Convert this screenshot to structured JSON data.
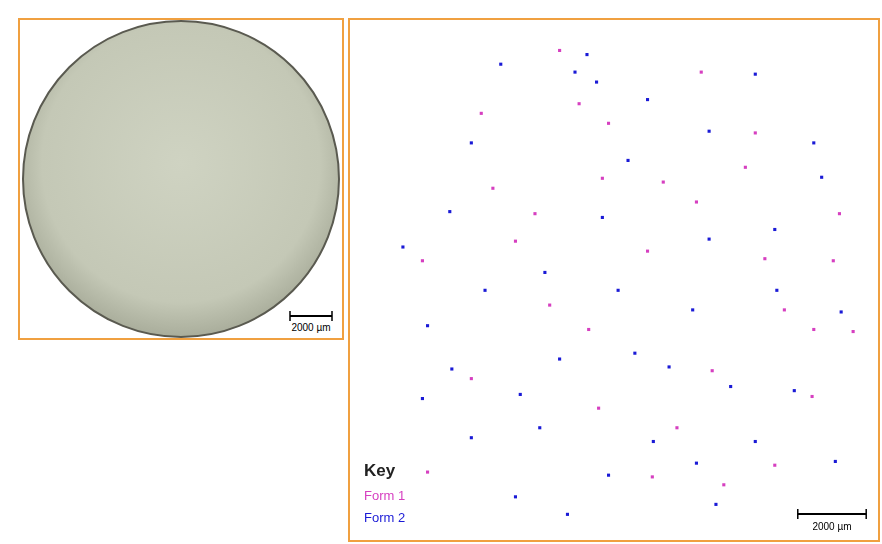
{
  "photo": {
    "scale_bar": {
      "value": 2000,
      "label": "2000 µm"
    }
  },
  "chart_data": {
    "type": "scatter",
    "xlim": [
      0,
      15200
    ],
    "ylim": [
      0,
      14900
    ],
    "tick_labels": false,
    "grid": false,
    "legend": "bottom left",
    "legend_title": "Key",
    "scale_bar": {
      "value": 2000,
      "label": "2000 µm"
    },
    "series": [
      {
        "name": "Form 1",
        "color": "#d63fc0",
        "values": [
          [
            6010,
            14130
          ],
          [
            4060,
            10120
          ],
          [
            7260,
            10410
          ],
          [
            9040,
            10300
          ],
          [
            13390,
            4060
          ],
          [
            14190,
            9380
          ],
          [
            10470,
            4810
          ],
          [
            11730,
            11730
          ],
          [
            12580,
            6580
          ],
          [
            12010,
            8070
          ],
          [
            8580,
            8290
          ],
          [
            5720,
            6720
          ],
          [
            3720,
            12300
          ],
          [
            7150,
            3720
          ],
          [
            10810,
            1490
          ],
          [
            12300,
            2060
          ],
          [
            3430,
            4580
          ],
          [
            2150,
            1860
          ],
          [
            13440,
            6010
          ],
          [
            14590,
            5950
          ],
          [
            5290,
            9380
          ],
          [
            10010,
            9720
          ],
          [
            7440,
            12010
          ],
          [
            9440,
            3150
          ],
          [
            6860,
            6010
          ],
          [
            4720,
            8580
          ],
          [
            11440,
            10730
          ],
          [
            8720,
            1720
          ],
          [
            2000,
            8010
          ],
          [
            14010,
            8010
          ],
          [
            10150,
            13500
          ],
          [
            6580,
            12580
          ]
        ]
      },
      {
        "name": "Form 2",
        "color": "#1a1ad6",
        "values": [
          [
            6810,
            14010
          ],
          [
            7090,
            13210
          ],
          [
            6460,
            13500
          ],
          [
            8010,
            10930
          ],
          [
            3830,
            7150
          ],
          [
            5580,
            7670
          ],
          [
            9210,
            4920
          ],
          [
            4860,
            4120
          ],
          [
            7440,
            1770
          ],
          [
            13670,
            10440
          ],
          [
            1430,
            8410
          ],
          [
            10380,
            11780
          ],
          [
            10380,
            8640
          ],
          [
            7260,
            9270
          ],
          [
            3430,
            11440
          ],
          [
            2800,
            9440
          ],
          [
            8750,
            2750
          ],
          [
            10010,
            2120
          ],
          [
            12360,
            7150
          ],
          [
            2150,
            6120
          ],
          [
            11010,
            4350
          ],
          [
            12870,
            4230
          ],
          [
            11730,
            2750
          ],
          [
            14070,
            2170
          ],
          [
            4720,
            1140
          ],
          [
            8210,
            5320
          ],
          [
            6010,
            5150
          ],
          [
            14240,
            6520
          ],
          [
            12300,
            8920
          ],
          [
            3430,
            2860
          ],
          [
            5430,
            3150
          ],
          [
            9900,
            6580
          ],
          [
            7720,
            7150
          ],
          [
            13440,
            11440
          ],
          [
            8580,
            12700
          ],
          [
            11730,
            13440
          ],
          [
            4290,
            13730
          ],
          [
            6240,
            630
          ],
          [
            10580,
            920
          ],
          [
            2000,
            4000
          ],
          [
            2860,
            4860
          ]
        ]
      }
    ]
  }
}
